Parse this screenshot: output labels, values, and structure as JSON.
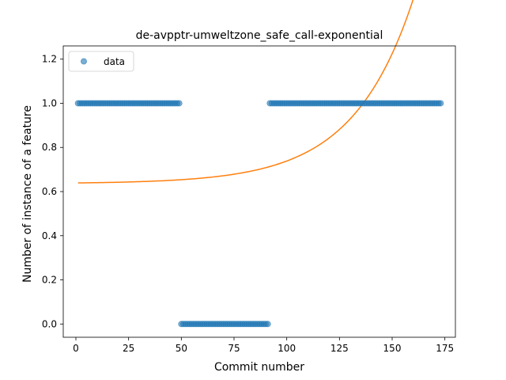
{
  "chart_data": {
    "type": "scatter",
    "title": "de-avpptr-umweltzone_safe_call-exponential",
    "xlabel": "Commit number",
    "ylabel": "Number of instance of a feature",
    "xlim": [
      -6,
      180
    ],
    "ylim": [
      -0.06,
      1.26
    ],
    "xticks": [
      0,
      25,
      50,
      75,
      100,
      125,
      150,
      175
    ],
    "yticks": [
      0.0,
      0.2,
      0.4,
      0.6,
      0.8,
      1.0,
      1.2
    ],
    "xtick_labels": [
      "0",
      "25",
      "50",
      "75",
      "100",
      "125",
      "150",
      "175"
    ],
    "ytick_labels": [
      "0.0",
      "0.2",
      "0.4",
      "0.6",
      "0.8",
      "1.0",
      "1.2"
    ],
    "grid": false,
    "legend": {
      "placement": "top-left",
      "entries": [
        "data"
      ]
    },
    "series": [
      {
        "name": "data",
        "kind": "scatter",
        "color": "#1f77b4",
        "segments": [
          {
            "x_start": 1,
            "x_end": 49,
            "y": 1
          },
          {
            "x_start": 50,
            "x_end": 91,
            "y": 0
          },
          {
            "x_start": 92,
            "x_end": 173,
            "y": 1
          }
        ]
      },
      {
        "kind": "line",
        "color": "#ff7f0e",
        "fit": {
          "a": 0.6361,
          "b": 0.0032,
          "k": 0.035,
          "x_start": 1,
          "x_end": 173
        }
      }
    ]
  }
}
